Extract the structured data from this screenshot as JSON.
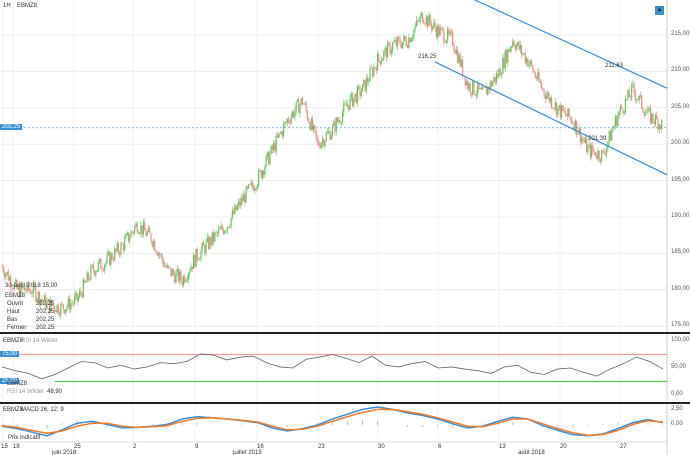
{
  "header": {
    "timeframe": "1H",
    "symbol": "EBMZ8"
  },
  "info": {
    "datetime": "30-août-2018 15:00",
    "symbol": "EBMZ8",
    "rows": [
      {
        "k": "Ouvrir",
        "v": "202,25"
      },
      {
        "k": "Haut",
        "v": "202,25"
      },
      {
        "k": "Bas",
        "v": "202,25"
      },
      {
        "k": "Fermer",
        "v": "202,25"
      }
    ]
  },
  "colors": {
    "up": "#5cc85c",
    "down": "#f08a8a",
    "channel": "#3d8fd6",
    "rsi_high": "#f5a0a0",
    "rsi_low": "#5cc85c",
    "macd": "#3d8fd6",
    "signal": "#f07d2a"
  },
  "chart_data": [
    {
      "type": "candlestick",
      "title": "EBMZ8",
      "ylim": [
        175,
        217
      ],
      "y_ticks": [
        "215,00",
        "210,00",
        "205,00",
        "200,00",
        "195,00",
        "190,00",
        "185,00",
        "180,00",
        "175,00"
      ],
      "y_tick_values": [
        215,
        210,
        205,
        200,
        195,
        190,
        185,
        180,
        175
      ],
      "closes": [
        183.2,
        180,
        180,
        178,
        177.5,
        178.6,
        182.7,
        184,
        186,
        189,
        187,
        182.7,
        181.4,
        184.8,
        186.9,
        189,
        192.4,
        195.2,
        199.2,
        203.3,
        206,
        200,
        202,
        205.5,
        207.5,
        211.5,
        213.6,
        214.3,
        217.7,
        215.6,
        214.3,
        208.1,
        206.8,
        209.5,
        214.3,
        211.5,
        207.5,
        204.8,
        203.3,
        199.2,
        198.5,
        204,
        207.5,
        204,
        202.6
      ],
      "last_price": 202.25,
      "last_price_label": "202,25",
      "channel_upper": [
        220,
        207.7
      ],
      "channel_lower": [
        211.3,
        195.8
      ],
      "annotations": [
        "216,25",
        "211,63",
        "201,39"
      ]
    },
    {
      "type": "line",
      "title": "EBMZ8",
      "indicator": "RSI 14 Wilder",
      "ylim": [
        0,
        100
      ],
      "y_ticks": [
        "100,00",
        "50,00",
        "0,00"
      ],
      "y_tick_values": [
        100,
        50,
        0
      ],
      "levels": [
        {
          "value": 75,
          "label": "75,00"
        },
        {
          "value": 25,
          "label": "25,00"
        }
      ],
      "values": [
        52,
        45,
        40,
        30,
        38,
        50,
        62,
        60,
        50,
        55,
        48,
        52,
        60,
        58,
        62,
        76,
        74,
        65,
        70,
        72,
        60,
        52,
        50,
        66,
        70,
        75,
        68,
        60,
        72,
        55,
        52,
        58,
        62,
        50,
        52,
        48,
        45,
        40,
        52,
        55,
        42,
        38,
        48,
        50,
        42,
        35,
        48,
        58,
        70,
        62,
        48
      ],
      "legend_value_label": "RSI 14 Wilder",
      "legend_value": "48,90"
    },
    {
      "type": "line",
      "title": "EBMZ8",
      "indicator": "MACD 26; 12; 9",
      "y_ticks": [
        "2,50",
        "0,00"
      ],
      "y_tick_values": [
        2.5,
        0
      ],
      "ylim": [
        -2.5,
        3.5
      ],
      "macd": [
        -0.2,
        -0.6,
        -1.2,
        -1.8,
        -0.8,
        0.3,
        0.6,
        0.1,
        -0.5,
        -0.4,
        -0.2,
        0.1,
        1.0,
        1.4,
        1.2,
        1.0,
        0.7,
        0.4,
        -0.5,
        -1.0,
        -0.6,
        0.0,
        1.0,
        1.8,
        2.6,
        3.0,
        2.6,
        2.0,
        1.6,
        1.0,
        0.2,
        -0.5,
        -0.2,
        0.6,
        1.3,
        1.0,
        -0.1,
        -0.9,
        -1.6,
        -1.8,
        -1.5,
        -0.6,
        0.4,
        0.9,
        0.4
      ],
      "signal": [
        -0.1,
        -0.4,
        -0.9,
        -1.4,
        -1.0,
        -0.2,
        0.3,
        0.3,
        -0.2,
        -0.4,
        -0.3,
        -0.1,
        0.6,
        1.1,
        1.2,
        1.0,
        0.8,
        0.5,
        -0.2,
        -0.8,
        -0.7,
        -0.2,
        0.6,
        1.4,
        2.1,
        2.6,
        2.6,
        2.2,
        1.8,
        1.2,
        0.5,
        -0.2,
        -0.3,
        0.3,
        1.0,
        1.0,
        0.2,
        -0.6,
        -1.3,
        -1.7,
        -1.6,
        -0.9,
        0.1,
        0.7,
        0.5
      ],
      "legend_note": "Prix indicatif"
    }
  ],
  "x_axis": {
    "day_labels": [
      "15",
      "18",
      "25",
      "2",
      "9",
      "16",
      "23",
      "30",
      "6",
      "13",
      "20",
      "27"
    ],
    "month_labels": [
      "juin 2018",
      "juillet 2018",
      "août 2018"
    ]
  }
}
